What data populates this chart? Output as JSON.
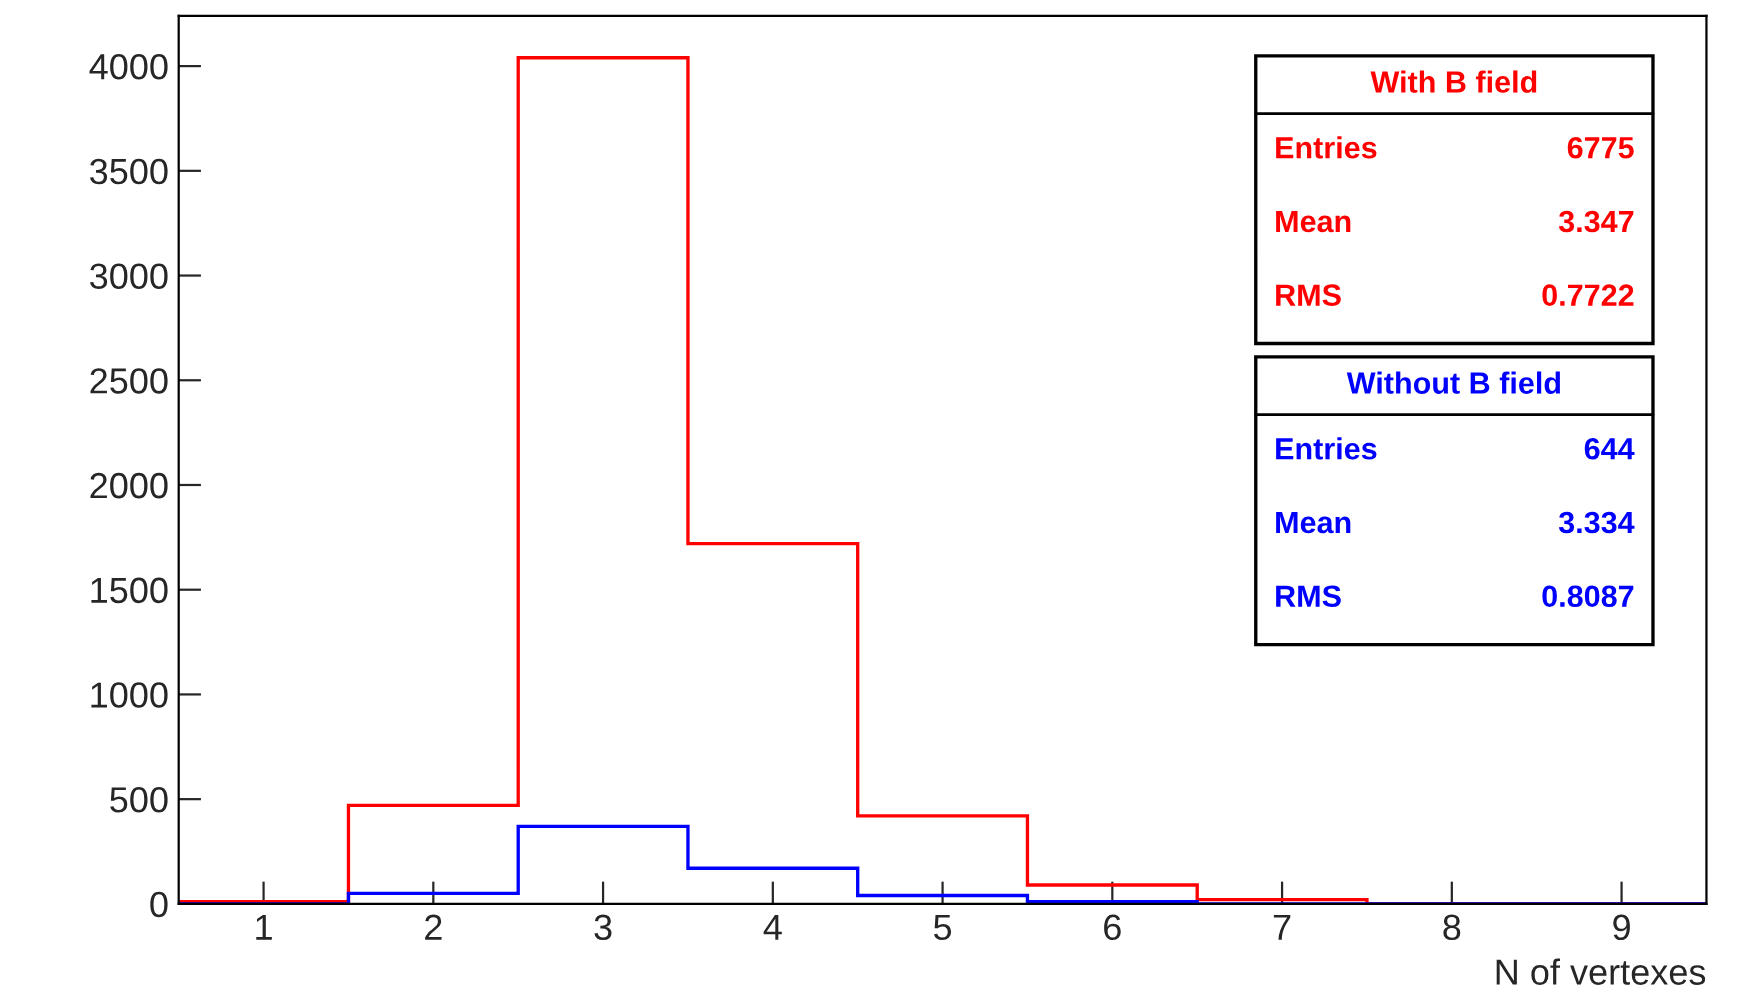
{
  "chart_data": {
    "type": "histogram",
    "xlabel": "N of vertexes",
    "bins": [
      0.5,
      1.5,
      2.5,
      3.5,
      4.5,
      5.5,
      6.5,
      7.5,
      8.5,
      9.5
    ],
    "series": [
      {
        "name": "With B field",
        "color": "#ff0000",
        "values": [
          10,
          470,
          4040,
          1720,
          420,
          90,
          20,
          0,
          0
        ]
      },
      {
        "name": "Without B field",
        "color": "#0000ff",
        "values": [
          0,
          50,
          370,
          170,
          40,
          10,
          0,
          0,
          0
        ]
      }
    ],
    "annotations": [
      "Entries",
      "6775",
      "Mean",
      "3.347",
      "RMS",
      "0.7722",
      "Entries",
      "644",
      "Mean",
      "3.334",
      "RMS",
      "0.8087"
    ],
    "xlim": [
      0.5,
      9.5
    ],
    "ylim": [
      0,
      4240
    ],
    "xticks": [
      1,
      2,
      3,
      4,
      5,
      6,
      7,
      8,
      9
    ],
    "yticks": [
      0,
      500,
      1000,
      1500,
      2000,
      2500,
      3000,
      3500,
      4000
    ],
    "legend": "top right",
    "grid": false
  }
}
